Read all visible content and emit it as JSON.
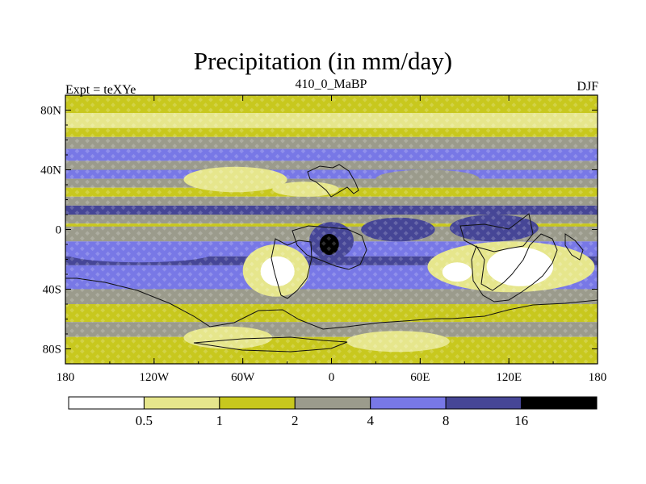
{
  "figure": {
    "title": "Precipitation (in mm/day)",
    "left_string": "Expt = teXYe",
    "center_string": "410_0_MaBP",
    "right_string": "DJF"
  },
  "chart_data": {
    "type": "heatmap",
    "title": "Precipitation (in mm/day)",
    "subtitle": "410_0_MaBP",
    "annotations": [
      "Expt = teXYe",
      "DJF"
    ],
    "xlabel": "",
    "ylabel": "",
    "x_ticks": [
      "180",
      "120W",
      "60W",
      "0",
      "60E",
      "120E",
      "180"
    ],
    "x_tick_values": [
      -180,
      -120,
      -60,
      0,
      60,
      120,
      180
    ],
    "y_ticks": [
      "80N",
      "40N",
      "0",
      "40S",
      "80S"
    ],
    "y_tick_values": [
      80,
      40,
      0,
      -40,
      -80
    ],
    "xlim": [
      -180,
      180
    ],
    "ylim": [
      -90,
      90
    ],
    "colorbar": {
      "levels": [
        "0.5",
        "1",
        "2",
        "4",
        "8",
        "16"
      ],
      "colors": [
        "#ffffff",
        "#e6e68c",
        "#c8c81e",
        "#9b9b8c",
        "#7878e6",
        "#464696",
        "#000000"
      ]
    },
    "bands": [
      {
        "lat": [
          78,
          90
        ],
        "class": 2
      },
      {
        "lat": [
          68,
          78
        ],
        "class": 1
      },
      {
        "lat": [
          62,
          68
        ],
        "class": 2
      },
      {
        "lat": [
          54,
          62
        ],
        "class": 3
      },
      {
        "lat": [
          46,
          54
        ],
        "class": 4
      },
      {
        "lat": [
          40,
          46
        ],
        "class": 3
      },
      {
        "lat": [
          34,
          40
        ],
        "class": 4
      },
      {
        "lat": [
          28,
          34
        ],
        "class": 3
      },
      {
        "lat": [
          22,
          28
        ],
        "class": 2
      },
      {
        "lat": [
          16,
          22
        ],
        "class": 3
      },
      {
        "lat": [
          10,
          16
        ],
        "class": 5
      },
      {
        "lat": [
          4,
          10
        ],
        "class": 3
      },
      {
        "lat": [
          -2,
          4
        ],
        "class": 2
      },
      {
        "lat": [
          -8,
          2
        ],
        "class": 3
      },
      {
        "lat": [
          -18,
          -8
        ],
        "class": 4
      },
      {
        "lat": [
          -24,
          -18
        ],
        "class": 5
      },
      {
        "lat": [
          -40,
          -24
        ],
        "class": 4
      },
      {
        "lat": [
          -50,
          -40
        ],
        "class": 3
      },
      {
        "lat": [
          -62,
          -50
        ],
        "class": 2
      },
      {
        "lat": [
          -72,
          -62
        ],
        "class": 3
      },
      {
        "lat": [
          -90,
          -72
        ],
        "class": 2
      }
    ],
    "regions": [
      {
        "class": 1,
        "lon": [
          -60,
          -15
        ],
        "lat": [
          -10,
          -45
        ]
      },
      {
        "class": 0,
        "lon": [
          -48,
          -25
        ],
        "lat": [
          -18,
          -38
        ]
      },
      {
        "class": 1,
        "lon": [
          65,
          178
        ],
        "lat": [
          -8,
          -42
        ]
      },
      {
        "class": 0,
        "lon": [
          105,
          150
        ],
        "lat": [
          -12,
          -38
        ]
      },
      {
        "class": 0,
        "lon": [
          75,
          95
        ],
        "lat": [
          -22,
          -35
        ]
      },
      {
        "class": 5,
        "lon": [
          -15,
          15
        ],
        "lat": [
          5,
          -20
        ]
      },
      {
        "class": 6,
        "lon": [
          -8,
          5
        ],
        "lat": [
          -3,
          -17
        ]
      },
      {
        "class": 5,
        "lon": [
          20,
          70
        ],
        "lat": [
          8,
          -8
        ]
      },
      {
        "class": 5,
        "lon": [
          80,
          140
        ],
        "lat": [
          10,
          -8
        ]
      },
      {
        "class": 1,
        "lon": [
          -100,
          -30
        ],
        "lat": [
          42,
          25
        ]
      },
      {
        "class": 1,
        "lon": [
          -40,
          5
        ],
        "lat": [
          32,
          22
        ]
      },
      {
        "class": 3,
        "lon": [
          30,
          100
        ],
        "lat": [
          40,
          28
        ]
      },
      {
        "class": 4,
        "lon": [
          -180,
          -80
        ],
        "lat": [
          -10,
          -22
        ]
      },
      {
        "class": 1,
        "lon": [
          -100,
          -40
        ],
        "lat": [
          -65,
          -80
        ]
      },
      {
        "class": 1,
        "lon": [
          10,
          80
        ],
        "lat": [
          -68,
          -82
        ]
      }
    ]
  }
}
